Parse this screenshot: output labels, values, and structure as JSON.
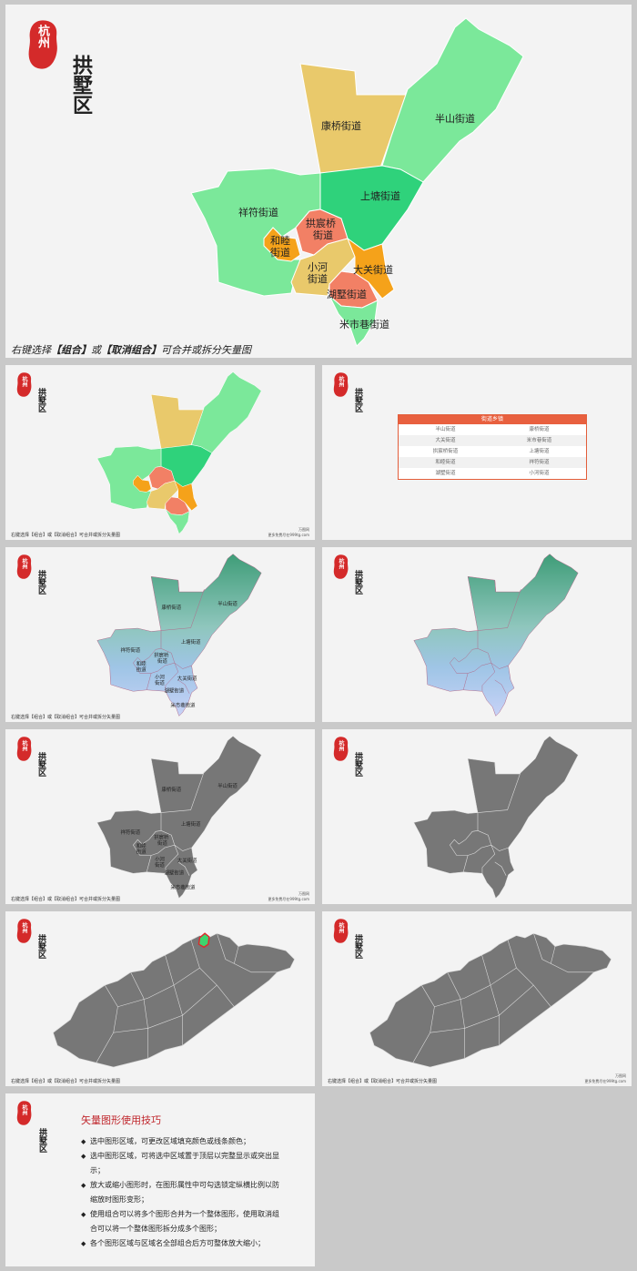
{
  "brand": {
    "seal_text": "杭州",
    "district": "拱墅区"
  },
  "caption": {
    "prefix": "右键选择",
    "group": "【组合】",
    "or": "或",
    "ungroup": "【取消组合】",
    "suffix": "可合并或拆分矢量图"
  },
  "caption_small": "右键选择【组合】或【取消组合】可合并或拆分矢量图",
  "watermark": {
    "line1": "万图网",
    "line2": "更多免费尽在999tg.com"
  },
  "streets": {
    "kangqiao": "康桥街道",
    "banshan": "半山街道",
    "shangtang": "上塘街道",
    "xiangfu": "祥符街道",
    "gongchenqiao_1": "拱宸桥",
    "gongchenqiao_2": "街道",
    "heshui_1": "和睦",
    "heshui_2": "街道",
    "xiaohe_1": "小河",
    "xiaohe_2": "街道",
    "daguan": "大关街道",
    "hushu": "湖墅街道",
    "mishixiang": "米市巷街道"
  },
  "table": {
    "header": "街道乡镇",
    "rows": [
      [
        "半山街道",
        "康桥街道"
      ],
      [
        "大关街道",
        "米市巷街道"
      ],
      [
        "拱宸桥街道",
        "上塘街道"
      ],
      [
        "和睦街道",
        "祥符街道"
      ],
      [
        "湖墅街道",
        "小河街道"
      ]
    ]
  },
  "tips": {
    "title": "矢量图形使用技巧",
    "items": [
      "选中图形区域，可更改区域填充颜色或线条颜色；",
      "选中图形区域，可将选中区域置于顶层以完整显示或突出显示；",
      "放大或缩小图形时，在图形属性中可勾选锁定纵横比例以防缩放时图形变形；",
      "使用组合可以将多个图形合并为一个整体图形，使用取消组合可以将一个整体图形拆分成多个图形；",
      "各个图形区域与区域名全部组合后方可整体放大缩小；"
    ]
  },
  "colors": {
    "seal_red": "#d42a2a",
    "light_green": "#7be89a",
    "green": "#2fd27b",
    "tan": "#e9c96b",
    "salmon": "#f28065",
    "orange": "#f5a21a",
    "gray": "#777777",
    "accent_red": "#c0262c"
  }
}
